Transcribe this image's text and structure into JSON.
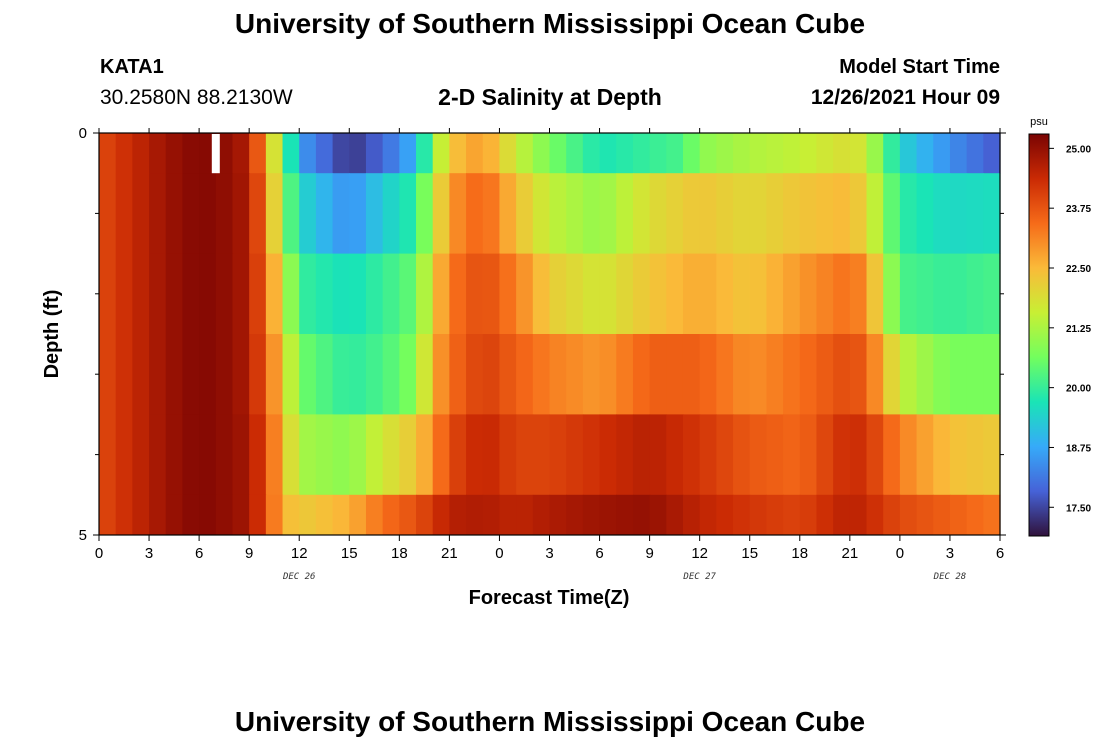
{
  "header": {
    "title": "University of Southern Mississippi Ocean Cube",
    "station": "KATA1",
    "coords": "30.2580N  88.2130W",
    "plot_title": "2-D Salinity at Depth",
    "model_label": "Model Start Time",
    "model_time": "12/26/2021 Hour 09"
  },
  "footer": {
    "title": "University of Southern Mississippi Ocean Cube"
  },
  "colors": {
    "background": "#ffffff",
    "missing_marker": "#ffffff"
  },
  "chart_data": {
    "type": "heatmap",
    "xlabel": "Forecast Time(Z)",
    "ylabel": "Depth (ft)",
    "x_tick_labels": [
      "0",
      "3",
      "6",
      "9",
      "12",
      "15",
      "18",
      "21",
      "0",
      "3",
      "6",
      "9",
      "12",
      "15",
      "18",
      "21",
      "0",
      "3",
      "6"
    ],
    "x_ticks_hours": [
      0,
      3,
      6,
      9,
      12,
      15,
      18,
      21,
      24,
      27,
      30,
      33,
      36,
      39,
      42,
      45,
      48,
      51,
      54
    ],
    "x_range_hours": [
      0,
      54
    ],
    "date_labels": [
      {
        "text": "DEC 26",
        "hour": 12
      },
      {
        "text": "DEC 27",
        "hour": 36
      },
      {
        "text": "DEC 28",
        "hour": 51
      }
    ],
    "y_tick_labels": [
      "0",
      "5"
    ],
    "y_range": [
      0,
      5
    ],
    "y_minor_ticks": [
      1,
      2,
      3,
      4
    ],
    "colorbar": {
      "unit": "psu",
      "min": 16.9,
      "max": 25.3,
      "tick_labels": [
        "25.00",
        "23.75",
        "22.50",
        "21.25",
        "20.00",
        "18.75",
        "17.50"
      ],
      "tick_values": [
        25.0,
        23.75,
        22.5,
        21.25,
        20.0,
        18.75,
        17.5
      ],
      "colormap": [
        "#30123b",
        "#4662d7",
        "#36aaf9",
        "#1ae4b6",
        "#72fe5e",
        "#c8ef34",
        "#faba39",
        "#f66b19",
        "#ca2a04",
        "#7a0403"
      ]
    },
    "missing_hour_7_cell": {
      "hour": 7,
      "layer": 0
    },
    "layers": [
      {
        "depth_top": 0,
        "depth_bottom": 0.5,
        "keys": [
          [
            0,
            23.9
          ],
          [
            2,
            24.4
          ],
          [
            4,
            24.9
          ],
          [
            6,
            25.2
          ],
          [
            8,
            25.0
          ],
          [
            9,
            24.6
          ],
          [
            10,
            22.8
          ],
          [
            11,
            20.8
          ],
          [
            12,
            18.6
          ],
          [
            15,
            17.3
          ],
          [
            17,
            17.9
          ],
          [
            19,
            18.9
          ],
          [
            20,
            20.8
          ],
          [
            21,
            22.3
          ],
          [
            23,
            22.9
          ],
          [
            25,
            21.6
          ],
          [
            27,
            20.7
          ],
          [
            30,
            19.7
          ],
          [
            33,
            20.0
          ],
          [
            35,
            20.2
          ],
          [
            36,
            20.9
          ],
          [
            39,
            21.3
          ],
          [
            42,
            21.5
          ],
          [
            45,
            21.9
          ],
          [
            46,
            21.6
          ],
          [
            48,
            19.4
          ],
          [
            51,
            18.4
          ],
          [
            54,
            17.7
          ]
        ]
      },
      {
        "depth_top": 0.5,
        "depth_bottom": 1.5,
        "keys": [
          [
            0,
            23.9
          ],
          [
            2,
            24.4
          ],
          [
            4,
            24.9
          ],
          [
            6,
            25.2
          ],
          [
            8,
            25.0
          ],
          [
            9,
            24.7
          ],
          [
            10,
            23.2
          ],
          [
            11,
            21.0
          ],
          [
            12,
            19.5
          ],
          [
            15,
            18.4
          ],
          [
            17,
            19.3
          ],
          [
            19,
            19.9
          ],
          [
            20,
            21.5
          ],
          [
            21,
            22.9
          ],
          [
            23,
            23.6
          ],
          [
            25,
            22.4
          ],
          [
            27,
            21.5
          ],
          [
            30,
            21.0
          ],
          [
            33,
            21.9
          ],
          [
            36,
            22.3
          ],
          [
            39,
            22.0
          ],
          [
            42,
            22.3
          ],
          [
            45,
            22.5
          ],
          [
            46,
            22.0
          ],
          [
            48,
            19.9
          ],
          [
            51,
            19.5
          ],
          [
            54,
            19.6
          ]
        ]
      },
      {
        "depth_top": 1.5,
        "depth_bottom": 2.5,
        "keys": [
          [
            0,
            23.9
          ],
          [
            2,
            24.4
          ],
          [
            4,
            24.9
          ],
          [
            6,
            25.2
          ],
          [
            8,
            25.0
          ],
          [
            9,
            24.7
          ],
          [
            10,
            23.4
          ],
          [
            11,
            21.8
          ],
          [
            12,
            20.0
          ],
          [
            15,
            19.6
          ],
          [
            17,
            20.0
          ],
          [
            19,
            20.5
          ],
          [
            20,
            22.1
          ],
          [
            21,
            23.3
          ],
          [
            23,
            23.9
          ],
          [
            25,
            23.2
          ],
          [
            27,
            22.2
          ],
          [
            30,
            21.7
          ],
          [
            33,
            22.3
          ],
          [
            36,
            22.7
          ],
          [
            39,
            22.3
          ],
          [
            42,
            22.9
          ],
          [
            45,
            23.4
          ],
          [
            46,
            23.0
          ],
          [
            48,
            20.2
          ],
          [
            51,
            20.0
          ],
          [
            54,
            20.2
          ]
        ]
      },
      {
        "depth_top": 2.5,
        "depth_bottom": 3.5,
        "keys": [
          [
            0,
            23.9
          ],
          [
            2,
            24.4
          ],
          [
            4,
            24.9
          ],
          [
            6,
            25.2
          ],
          [
            8,
            25.0
          ],
          [
            9,
            24.7
          ],
          [
            10,
            23.6
          ],
          [
            11,
            22.3
          ],
          [
            12,
            20.6
          ],
          [
            15,
            19.9
          ],
          [
            17,
            20.2
          ],
          [
            19,
            20.8
          ],
          [
            20,
            22.6
          ],
          [
            21,
            23.4
          ],
          [
            23,
            24.1
          ],
          [
            25,
            23.6
          ],
          [
            27,
            23.2
          ],
          [
            30,
            22.9
          ],
          [
            33,
            23.6
          ],
          [
            36,
            23.6
          ],
          [
            39,
            23.0
          ],
          [
            42,
            23.4
          ],
          [
            45,
            23.9
          ],
          [
            46,
            23.6
          ],
          [
            48,
            21.5
          ],
          [
            51,
            20.7
          ],
          [
            54,
            20.7
          ]
        ]
      },
      {
        "depth_top": 3.5,
        "depth_bottom": 4.5,
        "keys": [
          [
            0,
            23.9
          ],
          [
            2,
            24.4
          ],
          [
            4,
            24.9
          ],
          [
            6,
            25.2
          ],
          [
            8,
            25.0
          ],
          [
            9,
            24.8
          ],
          [
            10,
            23.9
          ],
          [
            11,
            22.5
          ],
          [
            12,
            21.2
          ],
          [
            15,
            20.9
          ],
          [
            17,
            21.7
          ],
          [
            19,
            22.3
          ],
          [
            20,
            23.0
          ],
          [
            21,
            23.9
          ],
          [
            23,
            24.5
          ],
          [
            25,
            24.0
          ],
          [
            27,
            24.0
          ],
          [
            30,
            24.3
          ],
          [
            33,
            24.6
          ],
          [
            36,
            24.2
          ],
          [
            39,
            23.7
          ],
          [
            42,
            23.5
          ],
          [
            45,
            24.4
          ],
          [
            46,
            24.2
          ],
          [
            48,
            23.2
          ],
          [
            51,
            22.4
          ],
          [
            54,
            22.2
          ]
        ]
      },
      {
        "depth_top": 4.5,
        "depth_bottom": 5,
        "keys": [
          [
            0,
            23.9
          ],
          [
            2,
            24.4
          ],
          [
            4,
            24.9
          ],
          [
            6,
            25.2
          ],
          [
            8,
            25.0
          ],
          [
            9,
            24.8
          ],
          [
            10,
            23.9
          ],
          [
            11,
            22.6
          ],
          [
            12,
            22.2
          ],
          [
            15,
            22.6
          ],
          [
            17,
            23.4
          ],
          [
            19,
            23.8
          ],
          [
            20,
            24.2
          ],
          [
            21,
            24.6
          ],
          [
            23,
            24.7
          ],
          [
            25,
            24.5
          ],
          [
            27,
            24.7
          ],
          [
            30,
            24.9
          ],
          [
            33,
            25.0
          ],
          [
            36,
            24.5
          ],
          [
            39,
            24.2
          ],
          [
            42,
            24.0
          ],
          [
            45,
            24.6
          ],
          [
            46,
            24.4
          ],
          [
            48,
            23.9
          ],
          [
            51,
            23.6
          ],
          [
            54,
            23.3
          ]
        ]
      }
    ]
  }
}
